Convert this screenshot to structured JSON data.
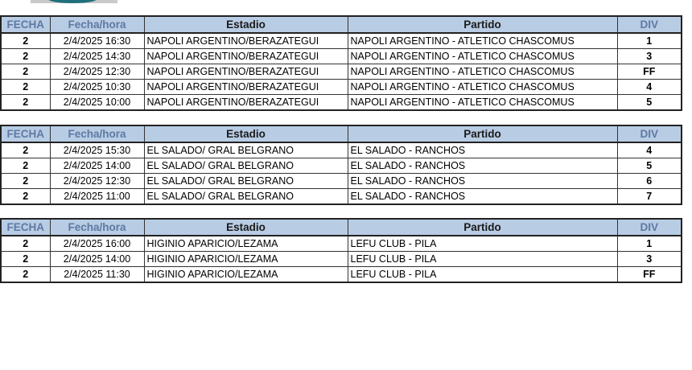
{
  "headers": {
    "fecha": "FECHA",
    "fecha_hora": "Fecha/hora",
    "estadio": "Estadio",
    "partido": "Partido",
    "div": "DIV"
  },
  "colors": {
    "header_bg": "#b8cce4",
    "header_muted_text": "#5e79a3"
  },
  "tables": [
    {
      "rows": [
        {
          "fecha": "2",
          "fecha_hora": "2/4/2025 16:30",
          "estadio": "NAPOLI ARGENTINO/BERAZATEGUI",
          "partido": "NAPOLI ARGENTINO - ATLETICO CHASCOMUS",
          "div": "1"
        },
        {
          "fecha": "2",
          "fecha_hora": "2/4/2025 14:30",
          "estadio": "NAPOLI ARGENTINO/BERAZATEGUI",
          "partido": "NAPOLI ARGENTINO - ATLETICO CHASCOMUS",
          "div": "3"
        },
        {
          "fecha": "2",
          "fecha_hora": "2/4/2025 12:30",
          "estadio": "NAPOLI ARGENTINO/BERAZATEGUI",
          "partido": "NAPOLI ARGENTINO - ATLETICO CHASCOMUS",
          "div": "FF"
        },
        {
          "fecha": "2",
          "fecha_hora": "2/4/2025 10:30",
          "estadio": "NAPOLI ARGENTINO/BERAZATEGUI",
          "partido": "NAPOLI ARGENTINO - ATLETICO CHASCOMUS",
          "div": "4"
        },
        {
          "fecha": "2",
          "fecha_hora": "2/4/2025 10:00",
          "estadio": "NAPOLI ARGENTINO/BERAZATEGUI",
          "partido": "NAPOLI ARGENTINO - ATLETICO CHASCOMUS",
          "div": "5"
        }
      ]
    },
    {
      "rows": [
        {
          "fecha": "2",
          "fecha_hora": "2/4/2025 15:30",
          "estadio": "EL SALADO/ GRAL BELGRANO",
          "partido": "EL SALADO - RANCHOS",
          "div": "4"
        },
        {
          "fecha": "2",
          "fecha_hora": "2/4/2025 14:00",
          "estadio": "EL SALADO/ GRAL BELGRANO",
          "partido": "EL SALADO - RANCHOS",
          "div": "5"
        },
        {
          "fecha": "2",
          "fecha_hora": "2/4/2025 12:30",
          "estadio": "EL SALADO/ GRAL BELGRANO",
          "partido": "EL SALADO - RANCHOS",
          "div": "6"
        },
        {
          "fecha": "2",
          "fecha_hora": "2/4/2025 11:00",
          "estadio": "EL SALADO/ GRAL BELGRANO",
          "partido": "EL SALADO - RANCHOS",
          "div": "7"
        }
      ]
    },
    {
      "rows": [
        {
          "fecha": "2",
          "fecha_hora": "2/4/2025 16:00",
          "estadio": "HIGINIO APARICIO/LEZAMA",
          "partido": "LEFU CLUB - PILA",
          "div": "1"
        },
        {
          "fecha": "2",
          "fecha_hora": "2/4/2025 14:00",
          "estadio": "HIGINIO APARICIO/LEZAMA",
          "partido": "LEFU CLUB - PILA",
          "div": "3"
        },
        {
          "fecha": "2",
          "fecha_hora": "2/4/2025 11:30",
          "estadio": "HIGINIO APARICIO/LEZAMA",
          "partido": "LEFU CLUB - PILA",
          "div": "FF"
        }
      ]
    }
  ]
}
